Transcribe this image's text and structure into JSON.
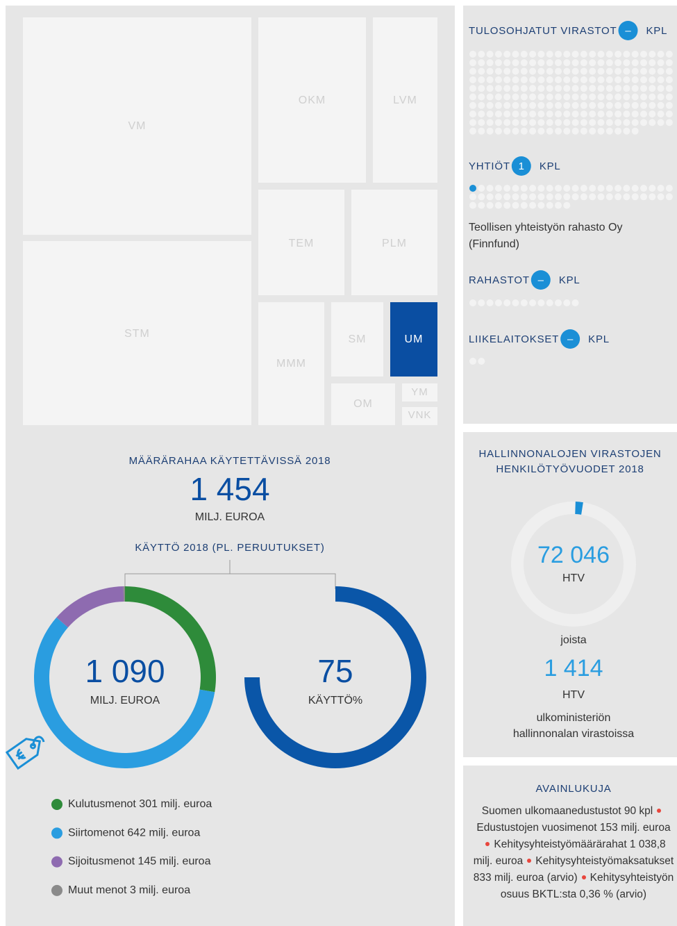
{
  "treemap": [
    "VM",
    "STM",
    "OKM",
    "LVM",
    "TEM",
    "PLM",
    "MMM",
    "SM",
    "UM",
    "OM",
    "YM",
    "VNK"
  ],
  "budget": {
    "title": "MÄÄRÄRAHAA KÄYTETTÄVISSÄ 2018",
    "amount": "1 454",
    "unit": "MILJ. EUROA"
  },
  "usage": {
    "title": "KÄYTTÖ 2018 (PL. PERUUTUKSET)",
    "spending": {
      "total": {
        "value": 1090,
        "label": "1 090"
      },
      "unit": "MILJ. EUROA",
      "segments": [
        {
          "name": "Kulutusmenot",
          "value": 301,
          "unit": "milj. euroa",
          "color": "#2e8b3a"
        },
        {
          "name": "Siirtomenot",
          "value": 642,
          "unit": "milj. euroa",
          "color": "#2a9de0"
        },
        {
          "name": "Sijoitusmenot",
          "value": 145,
          "unit": "milj. euroa",
          "color": "#8e6bb0"
        },
        {
          "name": "Muut menot",
          "value": 3,
          "unit": "milj. euroa",
          "color": "#8a8a8a"
        }
      ]
    },
    "rate": {
      "value": 75,
      "label": "KÄYTTÖ%",
      "color": "#0a56a8"
    }
  },
  "entities": [
    {
      "name": "TULOSOHJATUT VIRASTOT",
      "count": "–",
      "unit": "KPL"
    },
    {
      "name": "YHTIÖT",
      "count": 1,
      "unit": "KPL",
      "note": [
        "Teollisen yhteistyön rahasto Oy",
        "(Finnfund)"
      ]
    },
    {
      "name": "RAHASTOT",
      "count": "–",
      "unit": "KPL"
    },
    {
      "name": "LIIKELAITOKSET",
      "count": "–",
      "unit": "KPL"
    }
  ],
  "staff": {
    "title": [
      "HALLINNONALOJEN VIRASTOJEN",
      "HENKILÖTYÖVUODET 2018"
    ],
    "total": {
      "value": 72046,
      "label": "72 046"
    },
    "total_unit": "HTV",
    "joining": "joista",
    "part": {
      "value": 1414,
      "label": "1 414"
    },
    "part_unit": "HTV",
    "part_desc": [
      "ulkoministeriön",
      "hallinnonalan virastoissa"
    ]
  },
  "key_figures": {
    "title": "AVAINLUKUJA",
    "items": [
      "Suomen ulkomaanedustustot 90 kpl",
      "Edustustojen vuosimenot 153 milj. euroa",
      "Kehitysyhteistyömäärärahat 1 038,8 milj. euroa",
      "Kehitys­yhteistyömaksatukset 833 milj. euroa (arvio)",
      "Kehitysyhteistyön osuus BKTL:sta 0,36 % (arvio)"
    ]
  }
}
